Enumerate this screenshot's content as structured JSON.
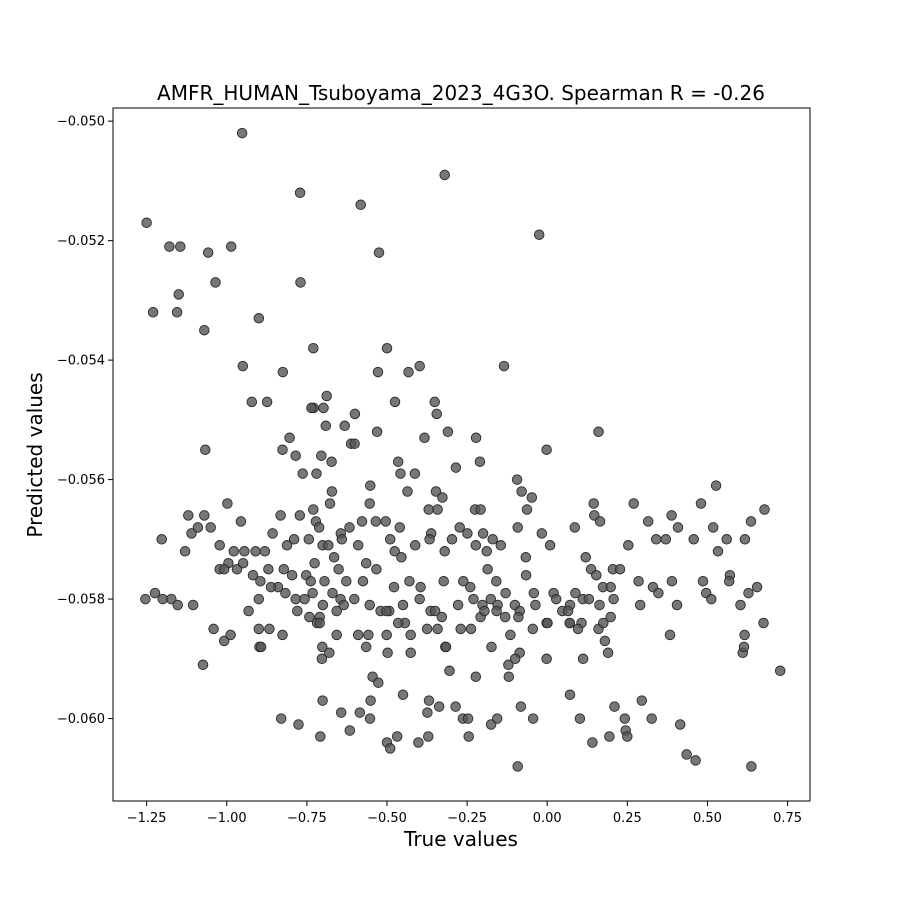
{
  "chart_data": {
    "type": "scatter",
    "title": "AMFR_HUMAN_Tsuboyama_2023_4G3O. Spearman R = -0.26",
    "xlabel": "True values",
    "ylabel": "Predicted values",
    "xlim": [
      -1.355,
      0.82
    ],
    "ylim": [
      -0.06138,
      -0.04978
    ],
    "xticks": [
      -1.25,
      -1.0,
      -0.75,
      -0.5,
      -0.25,
      0.0,
      0.25,
      0.5,
      0.75
    ],
    "xtick_labels": [
      "−1.25",
      "−1.00",
      "−0.75",
      "−0.50",
      "−0.25",
      "0.00",
      "0.25",
      "0.50",
      "0.75"
    ],
    "yticks": [
      -0.05,
      -0.052,
      -0.054,
      -0.056,
      -0.058,
      -0.06
    ],
    "ytick_labels": [
      "−0.050",
      "−0.052",
      "−0.054",
      "−0.056",
      "−0.058",
      "−0.060"
    ],
    "grid": false,
    "marker_color": "#555555",
    "points": [
      [
        -0.952,
        -0.0502
      ],
      [
        -0.771,
        -0.0512
      ],
      [
        -0.582,
        -0.0514
      ],
      [
        -0.32,
        -0.0509
      ],
      [
        -0.025,
        -0.0519
      ],
      [
        -1.25,
        -0.0517
      ],
      [
        -1.179,
        -0.0521
      ],
      [
        -1.145,
        -0.0521
      ],
      [
        -1.058,
        -0.0522
      ],
      [
        -0.986,
        -0.0521
      ],
      [
        -0.525,
        -0.0522
      ],
      [
        -1.15,
        -0.0529
      ],
      [
        -1.155,
        -0.0532
      ],
      [
        -1.23,
        -0.0532
      ],
      [
        -1.035,
        -0.0527
      ],
      [
        -0.77,
        -0.0527
      ],
      [
        -0.9,
        -0.0533
      ],
      [
        -1.07,
        -0.0535
      ],
      [
        -0.5,
        -0.0538
      ],
      [
        -0.73,
        -0.0538
      ],
      [
        -0.95,
        -0.0541
      ],
      [
        -0.825,
        -0.0542
      ],
      [
        -0.528,
        -0.0542
      ],
      [
        -0.433,
        -0.0542
      ],
      [
        -0.398,
        -0.0541
      ],
      [
        -0.135,
        -0.0541
      ],
      [
        -0.922,
        -0.0547
      ],
      [
        -0.874,
        -0.0547
      ],
      [
        -0.688,
        -0.0546
      ],
      [
        -0.729,
        -0.0548
      ],
      [
        -0.736,
        -0.0548
      ],
      [
        -0.698,
        -0.0548
      ],
      [
        -0.475,
        -0.0547
      ],
      [
        -0.351,
        -0.0547
      ],
      [
        -0.345,
        -0.0549
      ],
      [
        -0.6,
        -0.0549
      ],
      [
        -1.067,
        -0.0555
      ],
      [
        -0.804,
        -0.0553
      ],
      [
        -0.785,
        -0.0556
      ],
      [
        -0.826,
        -0.0555
      ],
      [
        -0.691,
        -0.0551
      ],
      [
        -0.632,
        -0.0551
      ],
      [
        -0.612,
        -0.0554
      ],
      [
        -0.601,
        -0.0554
      ],
      [
        -0.531,
        -0.0552
      ],
      [
        -0.383,
        -0.0553
      ],
      [
        -0.31,
        -0.0552
      ],
      [
        -0.222,
        -0.0553
      ],
      [
        -0.21,
        -0.0557
      ],
      [
        -0.002,
        -0.0555
      ],
      [
        0.16,
        -0.0552
      ],
      [
        -0.763,
        -0.0559
      ],
      [
        -0.72,
        -0.0559
      ],
      [
        -0.705,
        -0.0556
      ],
      [
        -0.673,
        -0.0557
      ],
      [
        -0.465,
        -0.0557
      ],
      [
        -0.458,
        -0.0559
      ],
      [
        -0.436,
        -0.0562
      ],
      [
        -0.413,
        -0.0559
      ],
      [
        -0.285,
        -0.0558
      ],
      [
        -0.094,
        -0.056
      ],
      [
        -0.08,
        -0.0562
      ],
      [
        -0.063,
        -0.0565
      ],
      [
        -0.048,
        -0.0563
      ],
      [
        -0.672,
        -0.0562
      ],
      [
        -0.678,
        -0.0564
      ],
      [
        -0.552,
        -0.0561
      ],
      [
        -0.554,
        -0.0564
      ],
      [
        -0.504,
        -0.0567
      ],
      [
        -0.46,
        -0.0568
      ],
      [
        -0.347,
        -0.0562
      ],
      [
        -0.327,
        -0.0563
      ],
      [
        -0.225,
        -0.0565
      ],
      [
        -0.208,
        -0.0565
      ],
      [
        -1.12,
        -0.0566
      ],
      [
        -1.07,
        -0.0566
      ],
      [
        -0.998,
        -0.0564
      ],
      [
        -0.956,
        -0.0567
      ],
      [
        -0.832,
        -0.0566
      ],
      [
        -0.772,
        -0.0566
      ],
      [
        -0.73,
        -0.0565
      ],
      [
        -0.722,
        -0.0567
      ],
      [
        -0.712,
        -0.0568
      ],
      [
        -0.644,
        -0.0569
      ],
      [
        -0.617,
        -0.0568
      ],
      [
        -0.578,
        -0.0567
      ],
      [
        -0.535,
        -0.0567
      ],
      [
        -0.37,
        -0.0565
      ],
      [
        -0.362,
        -0.0569
      ],
      [
        -0.342,
        -0.0565
      ],
      [
        -0.273,
        -0.0568
      ],
      [
        -0.2,
        -0.0569
      ],
      [
        -0.17,
        -0.057
      ],
      [
        -0.092,
        -0.0568
      ],
      [
        -0.017,
        -0.0569
      ],
      [
        0.086,
        -0.0568
      ],
      [
        0.147,
        -0.0566
      ],
      [
        0.165,
        -0.0567
      ],
      [
        0.145,
        -0.0564
      ],
      [
        0.27,
        -0.0564
      ],
      [
        0.315,
        -0.0567
      ],
      [
        0.388,
        -0.0566
      ],
      [
        0.48,
        -0.0564
      ],
      [
        0.527,
        -0.0561
      ],
      [
        0.518,
        -0.0568
      ],
      [
        0.56,
        -0.057
      ],
      [
        0.636,
        -0.0567
      ],
      [
        0.678,
        -0.0565
      ],
      [
        -1.203,
        -0.057
      ],
      [
        -1.13,
        -0.0572
      ],
      [
        -1.11,
        -0.0569
      ],
      [
        -1.09,
        -0.0568
      ],
      [
        -1.05,
        -0.0568
      ],
      [
        -1.022,
        -0.0571
      ],
      [
        -0.995,
        -0.0574
      ],
      [
        -0.978,
        -0.0572
      ],
      [
        -0.945,
        -0.0572
      ],
      [
        -0.91,
        -0.0572
      ],
      [
        -0.881,
        -0.0572
      ],
      [
        -0.857,
        -0.0569
      ],
      [
        -0.812,
        -0.0571
      ],
      [
        -0.79,
        -0.057
      ],
      [
        -0.744,
        -0.057
      ],
      [
        -0.726,
        -0.0574
      ],
      [
        -0.701,
        -0.0571
      ],
      [
        -0.683,
        -0.0571
      ],
      [
        -0.665,
        -0.0573
      ],
      [
        -0.641,
        -0.057
      ],
      [
        -0.59,
        -0.0571
      ],
      [
        -0.565,
        -0.0574
      ],
      [
        -0.49,
        -0.057
      ],
      [
        -0.476,
        -0.0572
      ],
      [
        -0.455,
        -0.0573
      ],
      [
        -0.412,
        -0.0571
      ],
      [
        -0.367,
        -0.057
      ],
      [
        -0.32,
        -0.0572
      ],
      [
        -0.297,
        -0.057
      ],
      [
        -0.249,
        -0.0569
      ],
      [
        -0.223,
        -0.0571
      ],
      [
        -0.189,
        -0.0572
      ],
      [
        -0.145,
        -0.0571
      ],
      [
        -0.067,
        -0.0573
      ],
      [
        0.009,
        -0.0571
      ],
      [
        0.12,
        -0.0573
      ],
      [
        0.137,
        -0.0575
      ],
      [
        0.205,
        -0.0575
      ],
      [
        0.253,
        -0.0571
      ],
      [
        0.34,
        -0.057
      ],
      [
        0.37,
        -0.057
      ],
      [
        0.408,
        -0.0568
      ],
      [
        0.457,
        -0.057
      ],
      [
        0.533,
        -0.0572
      ],
      [
        0.57,
        -0.0576
      ],
      [
        0.617,
        -0.057
      ],
      [
        -1.022,
        -0.0575
      ],
      [
        -1.008,
        -0.0575
      ],
      [
        -0.968,
        -0.0575
      ],
      [
        -0.949,
        -0.0574
      ],
      [
        -0.918,
        -0.0576
      ],
      [
        -0.895,
        -0.0577
      ],
      [
        -0.87,
        -0.0575
      ],
      [
        -0.84,
        -0.0578
      ],
      [
        -0.822,
        -0.0575
      ],
      [
        -0.796,
        -0.0576
      ],
      [
        -0.752,
        -0.0576
      ],
      [
        -0.738,
        -0.0577
      ],
      [
        -0.695,
        -0.0577
      ],
      [
        -0.651,
        -0.0575
      ],
      [
        -0.627,
        -0.0577
      ],
      [
        -0.575,
        -0.0577
      ],
      [
        -0.533,
        -0.0575
      ],
      [
        -0.478,
        -0.0578
      ],
      [
        -0.43,
        -0.0577
      ],
      [
        -0.395,
        -0.0578
      ],
      [
        -0.323,
        -0.0577
      ],
      [
        -0.262,
        -0.0577
      ],
      [
        -0.24,
        -0.0578
      ],
      [
        -0.186,
        -0.0575
      ],
      [
        -0.159,
        -0.0577
      ],
      [
        -0.13,
        -0.0579
      ],
      [
        -0.066,
        -0.0576
      ],
      [
        -0.042,
        -0.0579
      ],
      [
        0.02,
        -0.0579
      ],
      [
        0.088,
        -0.0579
      ],
      [
        0.153,
        -0.0576
      ],
      [
        0.174,
        -0.0578
      ],
      [
        0.198,
        -0.0578
      ],
      [
        0.227,
        -0.0575
      ],
      [
        0.285,
        -0.0577
      ],
      [
        0.33,
        -0.0578
      ],
      [
        0.347,
        -0.0579
      ],
      [
        0.389,
        -0.0577
      ],
      [
        0.486,
        -0.0577
      ],
      [
        0.496,
        -0.0579
      ],
      [
        0.568,
        -0.0577
      ],
      [
        0.628,
        -0.0579
      ],
      [
        0.655,
        -0.0578
      ],
      [
        -1.254,
        -0.058
      ],
      [
        -1.224,
        -0.0579
      ],
      [
        -1.2,
        -0.058
      ],
      [
        -1.173,
        -0.058
      ],
      [
        -1.153,
        -0.0581
      ],
      [
        -1.105,
        -0.0581
      ],
      [
        -0.9,
        -0.058
      ],
      [
        -0.862,
        -0.0578
      ],
      [
        -0.817,
        -0.0579
      ],
      [
        -0.785,
        -0.058
      ],
      [
        -0.757,
        -0.058
      ],
      [
        -0.732,
        -0.0579
      ],
      [
        -0.7,
        -0.0581
      ],
      [
        -0.67,
        -0.0579
      ],
      [
        -0.645,
        -0.058
      ],
      [
        -0.635,
        -0.0581
      ],
      [
        -0.602,
        -0.058
      ],
      [
        -0.554,
        -0.0581
      ],
      [
        -0.52,
        -0.0582
      ],
      [
        -0.493,
        -0.0582
      ],
      [
        -0.45,
        -0.0581
      ],
      [
        -0.398,
        -0.058
      ],
      [
        -0.364,
        -0.0582
      ],
      [
        -0.329,
        -0.0583
      ],
      [
        -0.278,
        -0.0581
      ],
      [
        -0.23,
        -0.058
      ],
      [
        -0.202,
        -0.0581
      ],
      [
        -0.176,
        -0.058
      ],
      [
        -0.155,
        -0.0581
      ],
      [
        -0.131,
        -0.0583
      ],
      [
        -0.101,
        -0.0581
      ],
      [
        -0.086,
        -0.0582
      ],
      [
        -0.037,
        -0.0581
      ],
      [
        0.028,
        -0.058
      ],
      [
        0.047,
        -0.0582
      ],
      [
        0.071,
        -0.0581
      ],
      [
        0.111,
        -0.058
      ],
      [
        0.13,
        -0.058
      ],
      [
        0.163,
        -0.0581
      ],
      [
        0.207,
        -0.058
      ],
      [
        0.29,
        -0.0581
      ],
      [
        0.405,
        -0.0581
      ],
      [
        0.512,
        -0.058
      ],
      [
        0.603,
        -0.0581
      ],
      [
        -0.932,
        -0.0582
      ],
      [
        -0.78,
        -0.0582
      ],
      [
        -0.71,
        -0.0583
      ],
      [
        -0.657,
        -0.0582
      ],
      [
        -0.502,
        -0.0582
      ],
      [
        -0.444,
        -0.0584
      ],
      [
        -0.35,
        -0.0582
      ],
      [
        -0.208,
        -0.0583
      ],
      [
        -0.196,
        -0.0582
      ],
      [
        -0.158,
        -0.0582
      ],
      [
        -0.09,
        -0.0583
      ],
      [
        -0.002,
        -0.0584
      ],
      [
        0.065,
        -0.0582
      ],
      [
        0.07,
        -0.0584
      ],
      [
        0.107,
        -0.0584
      ],
      [
        0.16,
        -0.0585
      ],
      [
        0.175,
        -0.0584
      ],
      [
        0.198,
        -0.0583
      ],
      [
        0.675,
        -0.0584
      ],
      [
        -1.041,
        -0.0585
      ],
      [
        -1.008,
        -0.0587
      ],
      [
        -0.988,
        -0.0586
      ],
      [
        -0.9,
        -0.0585
      ],
      [
        -0.867,
        -0.0585
      ],
      [
        -0.826,
        -0.0586
      ],
      [
        -0.742,
        -0.0583
      ],
      [
        -0.718,
        -0.0584
      ],
      [
        -0.71,
        -0.0584
      ],
      [
        -0.657,
        -0.0586
      ],
      [
        -0.59,
        -0.0586
      ],
      [
        -0.558,
        -0.0586
      ],
      [
        -0.501,
        -0.0586
      ],
      [
        -0.465,
        -0.0584
      ],
      [
        -0.426,
        -0.0586
      ],
      [
        -0.375,
        -0.0585
      ],
      [
        -0.342,
        -0.0585
      ],
      [
        -0.318,
        -0.0588
      ],
      [
        -0.27,
        -0.0585
      ],
      [
        -0.238,
        -0.0585
      ],
      [
        -0.115,
        -0.0586
      ],
      [
        -0.045,
        -0.0585
      ],
      [
        0.001,
        -0.0584
      ],
      [
        0.07,
        -0.0584
      ],
      [
        0.096,
        -0.0585
      ],
      [
        0.18,
        -0.0587
      ],
      [
        0.383,
        -0.0586
      ],
      [
        0.616,
        -0.0586
      ],
      [
        -0.898,
        -0.0588
      ],
      [
        -0.893,
        -0.0588
      ],
      [
        -0.702,
        -0.0588
      ],
      [
        -0.68,
        -0.0589
      ],
      [
        -0.703,
        -0.059
      ],
      [
        -0.565,
        -0.0588
      ],
      [
        -0.498,
        -0.0589
      ],
      [
        -0.426,
        -0.0589
      ],
      [
        -0.316,
        -0.0588
      ],
      [
        -0.174,
        -0.0588
      ],
      [
        -0.086,
        -0.0589
      ],
      [
        -0.002,
        -0.059
      ],
      [
        0.112,
        -0.059
      ],
      [
        0.19,
        -0.0589
      ],
      [
        0.61,
        -0.0589
      ],
      [
        -1.074,
        -0.0591
      ],
      [
        -0.545,
        -0.0593
      ],
      [
        -0.527,
        -0.0594
      ],
      [
        -0.305,
        -0.0592
      ],
      [
        -0.223,
        -0.0593
      ],
      [
        -0.121,
        -0.0591
      ],
      [
        -0.12,
        -0.0593
      ],
      [
        -0.1,
        -0.059
      ],
      [
        0.614,
        -0.0588
      ],
      [
        0.727,
        -0.0592
      ],
      [
        -0.701,
        -0.0597
      ],
      [
        -0.551,
        -0.0597
      ],
      [
        -0.45,
        -0.0596
      ],
      [
        -0.369,
        -0.0597
      ],
      [
        -0.337,
        -0.0598
      ],
      [
        -0.286,
        -0.0598
      ],
      [
        0.071,
        -0.0596
      ],
      [
        0.21,
        -0.0598
      ],
      [
        0.295,
        -0.0597
      ],
      [
        -0.83,
        -0.06
      ],
      [
        -0.776,
        -0.0601
      ],
      [
        -0.643,
        -0.0599
      ],
      [
        -0.585,
        -0.0599
      ],
      [
        -0.553,
        -0.06
      ],
      [
        -0.374,
        -0.0599
      ],
      [
        -0.263,
        -0.06
      ],
      [
        -0.247,
        -0.06
      ],
      [
        -0.175,
        -0.0601
      ],
      [
        -0.156,
        -0.06
      ],
      [
        -0.082,
        -0.0598
      ],
      [
        -0.044,
        -0.06
      ],
      [
        0.102,
        -0.06
      ],
      [
        0.242,
        -0.06
      ],
      [
        0.326,
        -0.06
      ],
      [
        -0.708,
        -0.0603
      ],
      [
        -0.616,
        -0.0602
      ],
      [
        -0.5,
        -0.0604
      ],
      [
        -0.49,
        -0.0605
      ],
      [
        -0.468,
        -0.0603
      ],
      [
        -0.402,
        -0.0604
      ],
      [
        -0.371,
        -0.0603
      ],
      [
        -0.245,
        -0.0603
      ],
      [
        0.141,
        -0.0604
      ],
      [
        0.194,
        -0.0603
      ],
      [
        0.245,
        -0.0602
      ],
      [
        0.25,
        -0.0603
      ],
      [
        0.415,
        -0.0601
      ],
      [
        -0.092,
        -0.0608
      ],
      [
        0.435,
        -0.0606
      ],
      [
        0.463,
        -0.0607
      ],
      [
        0.637,
        -0.0608
      ]
    ]
  }
}
